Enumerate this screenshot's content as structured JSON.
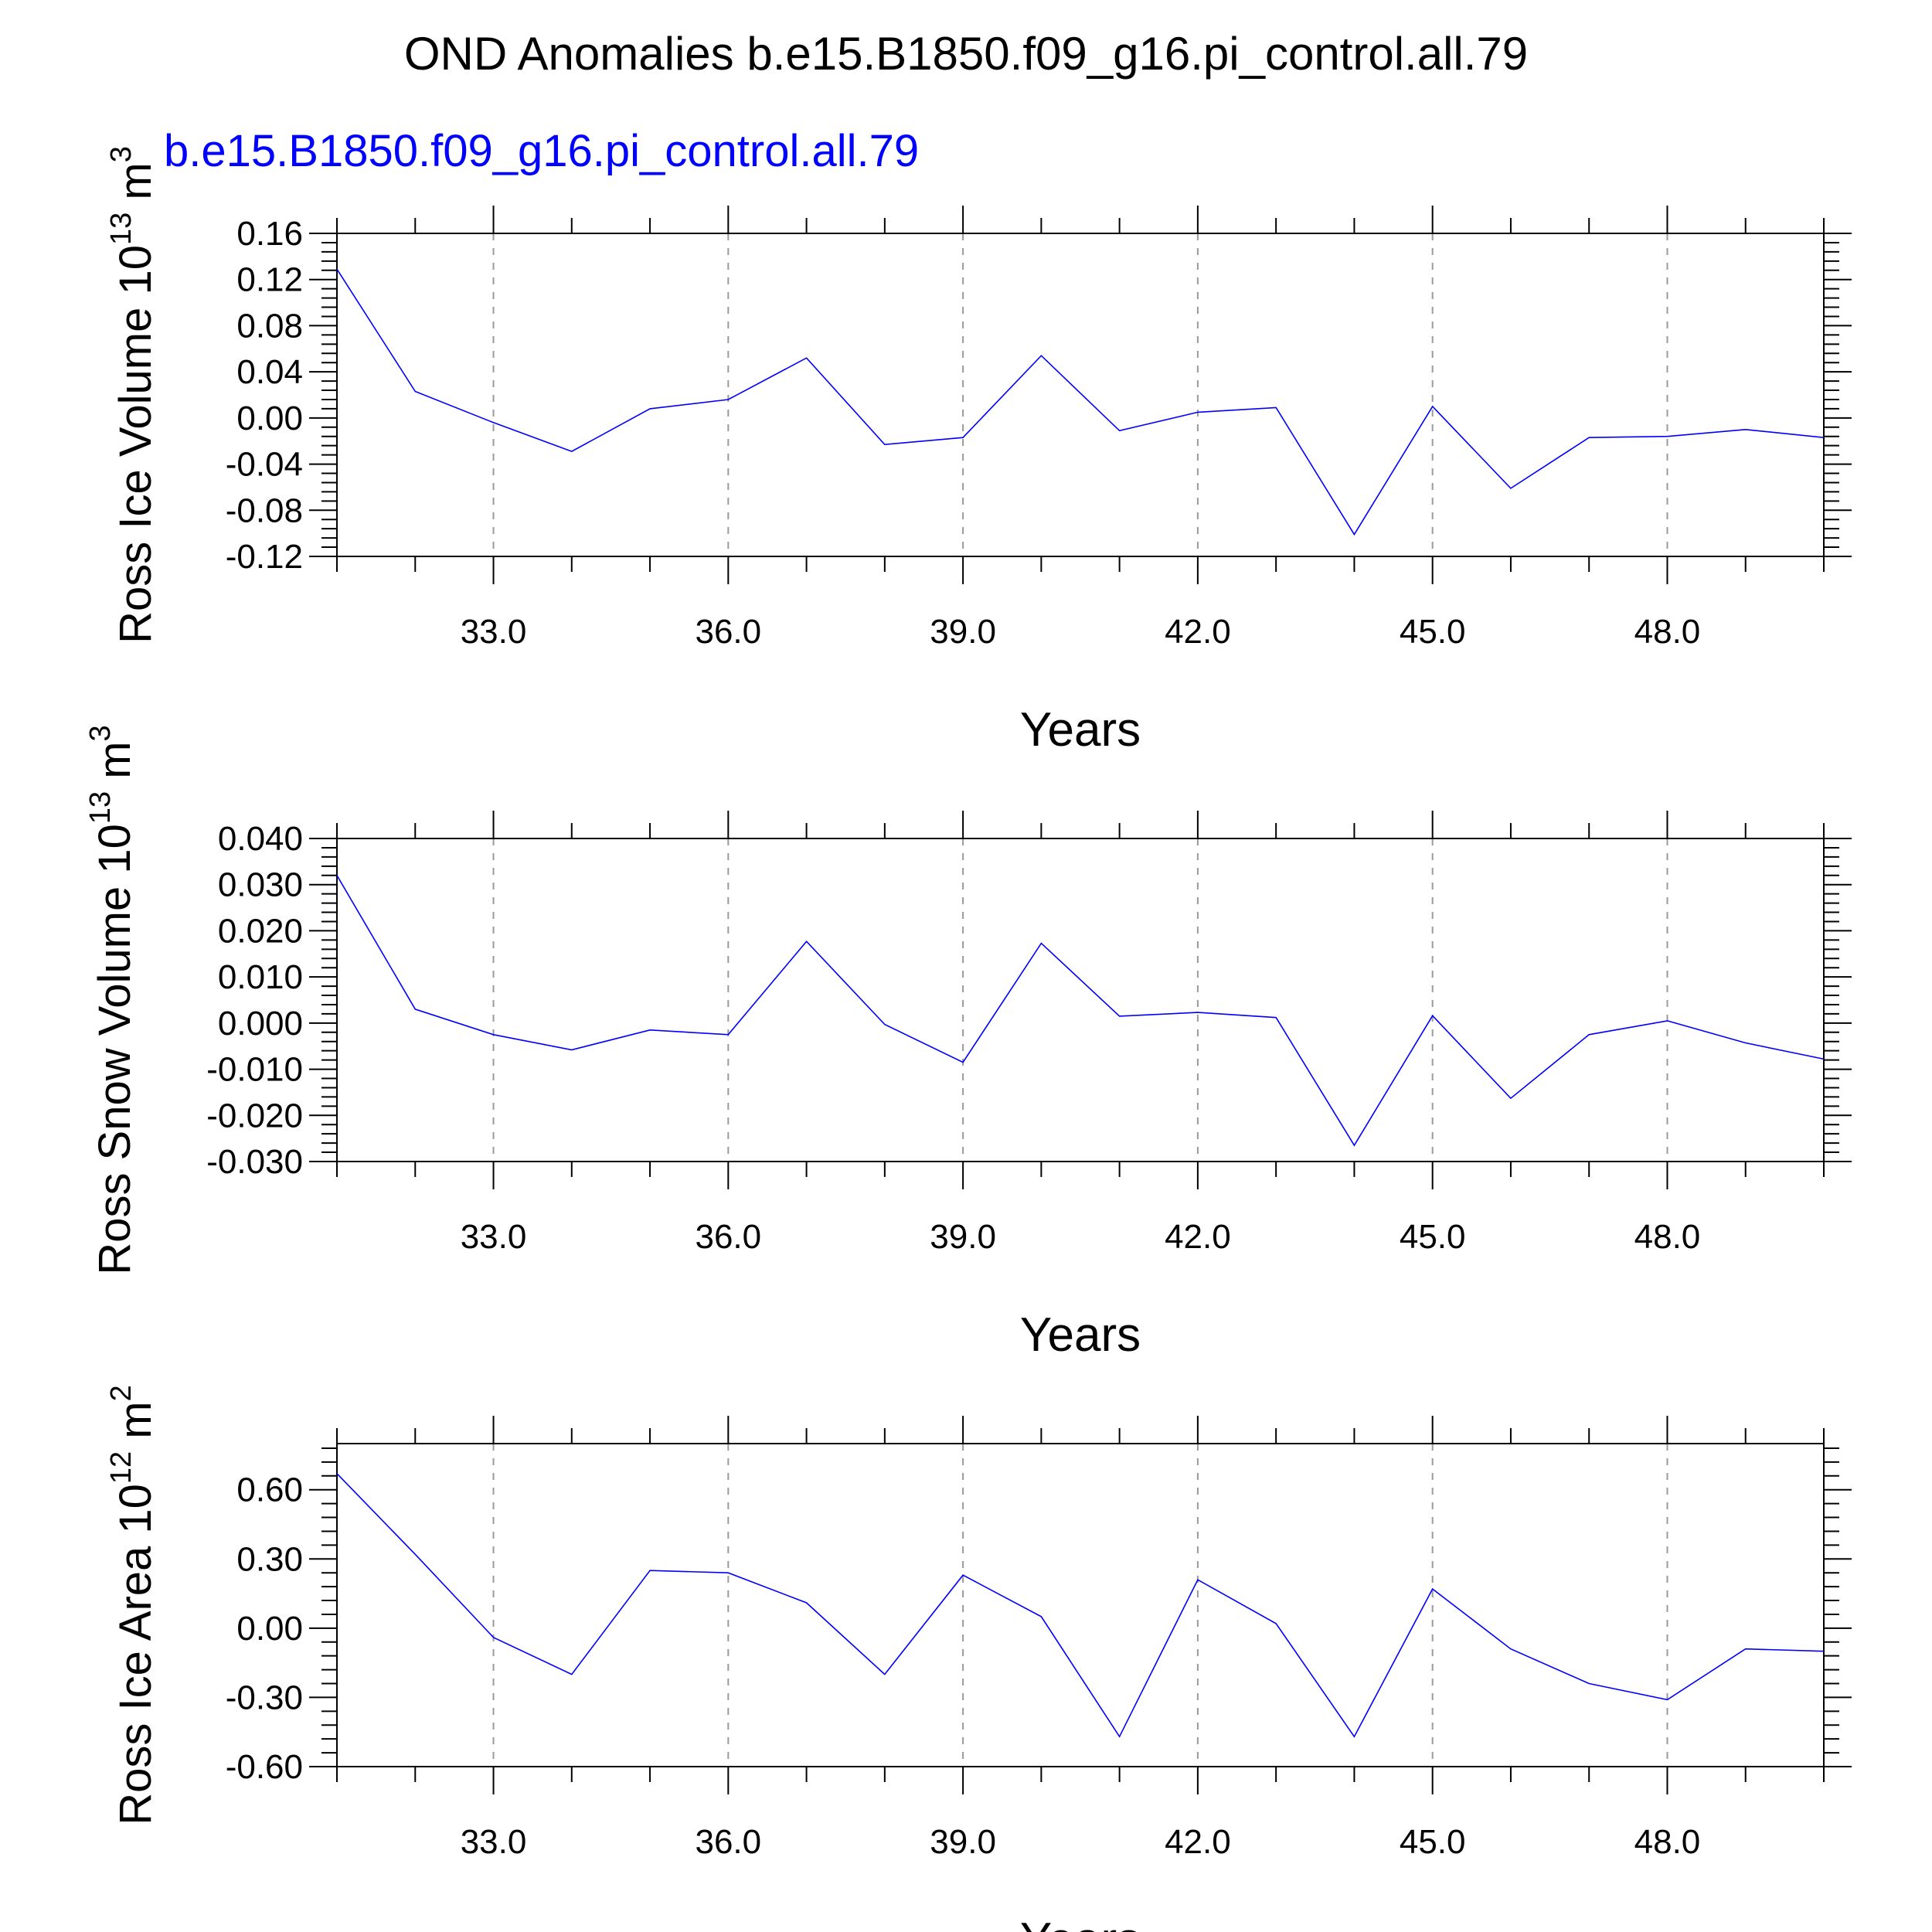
{
  "title": "OND Anomalies b.e15.B1850.f09_g16.pi_control.all.79",
  "legend_label": "b.e15.B1850.f09_g16.pi_control.all.79",
  "colors": {
    "series": "#0000ff",
    "axes": "#000000",
    "grid": "#9a9a9a"
  },
  "chart_data": [
    {
      "type": "line",
      "ylabel": "Ross Ice Volume 10",
      "ylabel_exp": "13",
      "ylabel_unit": " m",
      "ylabel_unit_exp": "3",
      "xlabel": "Years",
      "xlim": [
        31,
        50
      ],
      "ylim": [
        -0.12,
        0.16
      ],
      "xticks": [
        33,
        36,
        39,
        42,
        45,
        48
      ],
      "xtick_labels": [
        "33.0",
        "36.0",
        "39.0",
        "42.0",
        "45.0",
        "48.0"
      ],
      "yticks": [
        -0.12,
        -0.08,
        -0.04,
        0.0,
        0.04,
        0.08,
        0.12,
        0.16
      ],
      "ytick_labels": [
        "-0.12",
        "-0.08",
        "-0.04",
        "0.00",
        "0.04",
        "0.08",
        "0.12",
        "0.16"
      ],
      "grid": "vertical dashed at major x ticks",
      "x": [
        31,
        32,
        33,
        34,
        35,
        36,
        37,
        38,
        39,
        40,
        41,
        42,
        43,
        44,
        45,
        46,
        47,
        48,
        49,
        50
      ],
      "y": [
        0.129,
        0.023,
        -0.004,
        -0.029,
        0.008,
        0.016,
        0.052,
        -0.023,
        -0.017,
        0.054,
        -0.011,
        0.005,
        0.009,
        -0.101,
        0.01,
        -0.061,
        -0.017,
        -0.016,
        -0.01,
        -0.017
      ]
    },
    {
      "type": "line",
      "ylabel": "Ross Snow Volume 10",
      "ylabel_exp": "13",
      "ylabel_unit": " m",
      "ylabel_unit_exp": "3",
      "xlabel": "Years",
      "xlim": [
        31,
        50
      ],
      "ylim": [
        -0.03,
        0.04
      ],
      "xticks": [
        33,
        36,
        39,
        42,
        45,
        48
      ],
      "xtick_labels": [
        "33.0",
        "36.0",
        "39.0",
        "42.0",
        "45.0",
        "48.0"
      ],
      "yticks": [
        -0.03,
        -0.02,
        -0.01,
        0.0,
        0.01,
        0.02,
        0.03,
        0.04
      ],
      "ytick_labels": [
        "-0.030",
        "-0.020",
        "-0.010",
        "0.000",
        "0.010",
        "0.020",
        "0.030",
        "0.040"
      ],
      "grid": "vertical dashed at major x ticks",
      "x": [
        31,
        32,
        33,
        34,
        35,
        36,
        37,
        38,
        39,
        40,
        41,
        42,
        43,
        44,
        45,
        46,
        47,
        48,
        49,
        50
      ],
      "y": [
        0.032,
        0.003,
        -0.0025,
        -0.0058,
        -0.0015,
        -0.0025,
        0.0177,
        -0.0003,
        -0.0085,
        0.0173,
        0.0015,
        0.0023,
        0.0012,
        -0.0265,
        0.0016,
        -0.0163,
        -0.0025,
        0.0005,
        -0.0043,
        -0.0078
      ]
    },
    {
      "type": "line",
      "ylabel": "Ross Ice Area 10",
      "ylabel_exp": "12",
      "ylabel_unit": " m",
      "ylabel_unit_exp": "2",
      "xlabel": "Years",
      "xlim": [
        31,
        50
      ],
      "ylim": [
        -0.6,
        0.8
      ],
      "xticks": [
        33,
        36,
        39,
        42,
        45,
        48
      ],
      "xtick_labels": [
        "33.0",
        "36.0",
        "39.0",
        "42.0",
        "45.0",
        "48.0"
      ],
      "yticks": [
        -0.6,
        -0.3,
        0.0,
        0.3,
        0.6
      ],
      "ytick_labels": [
        "-0.60",
        "-0.30",
        "0.00",
        "0.30",
        "0.60"
      ],
      "grid": "vertical dashed at major x ticks",
      "x": [
        31,
        32,
        33,
        34,
        35,
        36,
        37,
        38,
        39,
        40,
        41,
        42,
        43,
        44,
        45,
        46,
        47,
        48,
        49,
        50
      ],
      "y": [
        0.67,
        0.32,
        -0.04,
        -0.2,
        0.25,
        0.24,
        0.11,
        -0.2,
        0.23,
        0.05,
        -0.47,
        0.21,
        0.02,
        -0.47,
        0.17,
        -0.09,
        -0.24,
        -0.31,
        -0.09,
        -0.1
      ]
    }
  ]
}
